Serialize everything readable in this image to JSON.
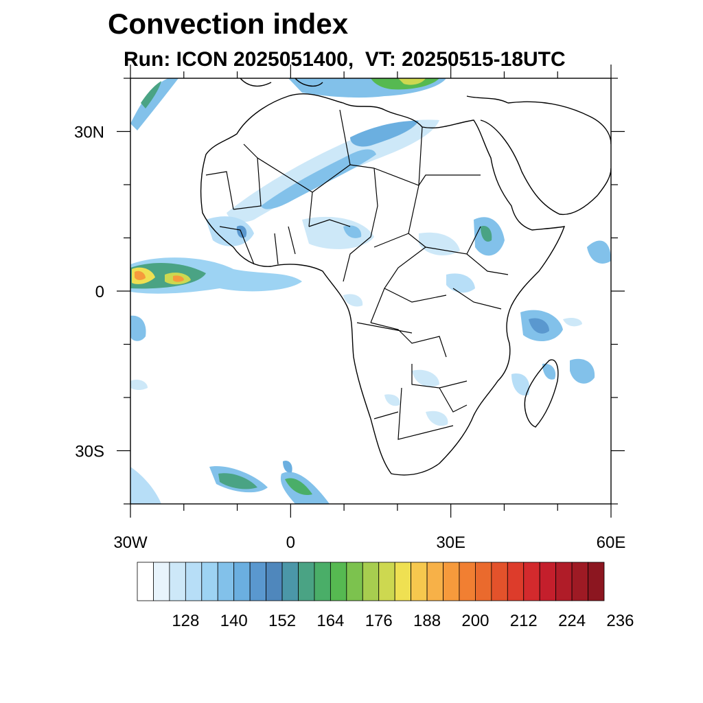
{
  "title": "Convection index",
  "subtitle": "Run: ICON 2025051400,  VT: 20250515-18UTC",
  "map": {
    "lon_range": [
      -30,
      60
    ],
    "lat_range": [
      -40,
      40
    ],
    "x_ticks": [
      {
        "value": -30,
        "label": "30W"
      },
      {
        "value": 0,
        "label": "0"
      },
      {
        "value": 30,
        "label": "30E"
      },
      {
        "value": 60,
        "label": "60E"
      }
    ],
    "y_ticks": [
      {
        "value": 30,
        "label": "30N"
      },
      {
        "value": 0,
        "label": "0"
      },
      {
        "value": -30,
        "label": "30S"
      }
    ]
  },
  "colorbar": {
    "levels_start": 120,
    "level_step": 4,
    "colors": [
      "#ffffff",
      "#e8f4fc",
      "#cde8f8",
      "#b7def7",
      "#9dd3f3",
      "#82c1ea",
      "#6bafe0",
      "#5a98cf",
      "#4f87bc",
      "#4b97a8",
      "#4aa384",
      "#4aae68",
      "#56b951",
      "#7cc24e",
      "#a7cd4f",
      "#cdd850",
      "#efe052",
      "#f6c84e",
      "#f7b148",
      "#f69a3c",
      "#f17f32",
      "#ea6a2d",
      "#e3522b",
      "#dd3c2b",
      "#d32a2d",
      "#c41f2c",
      "#b01c28",
      "#9e1a24",
      "#8c1620"
    ],
    "labels": [
      "128",
      "140",
      "152",
      "164",
      "176",
      "188",
      "200",
      "212",
      "224",
      "236"
    ]
  }
}
